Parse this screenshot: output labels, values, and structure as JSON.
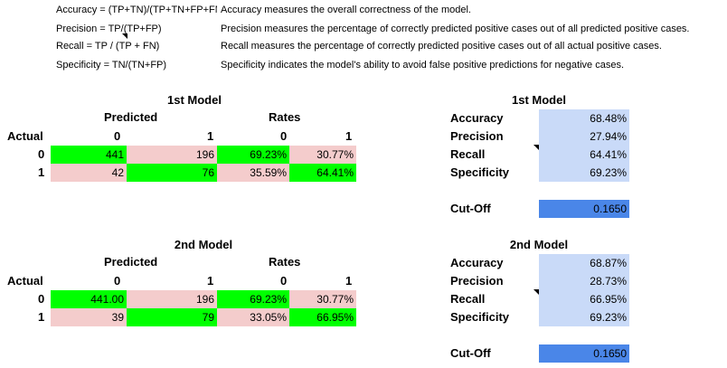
{
  "definitions": [
    {
      "formula": "Accuracy = (TP+TN)/(TP+TN+FP+FN)",
      "description": "Accuracy measures the overall correctness of the model."
    },
    {
      "formula": "Precision = TP/(TP+FP)",
      "description": "Precision measures the percentage of correctly predicted positive cases out of all predicted positive cases."
    },
    {
      "formula": "Recall = TP / (TP + FN)",
      "description": "Recall measures the percentage of correctly predicted positive cases out of all actual positive cases."
    },
    {
      "formula": "Specificity = TN/(TN+FP)",
      "description": "Specificity indicates the model's ability to avoid false positive predictions for negative cases."
    }
  ],
  "labels": {
    "predicted": "Predicted",
    "rates": "Rates",
    "actual": "Actual",
    "zero": "0",
    "one": "1",
    "accuracy": "Accuracy",
    "precision": "Precision",
    "recall": "Recall",
    "specificity": "Specificity",
    "cutoff": "Cut-Off"
  },
  "models": [
    {
      "title": "1st Model",
      "row0": {
        "pred0": "441",
        "pred1": "196",
        "rate0": "69.23%",
        "rate1": "30.77%"
      },
      "row1": {
        "pred0": "42",
        "pred1": "76",
        "rate0": "35.59%",
        "rate1": "64.41%"
      },
      "stats": {
        "accuracy": "68.48%",
        "precision": "27.94%",
        "recall": "64.41%",
        "specificity": "69.23%",
        "cutoff": "0.1650"
      }
    },
    {
      "title": "2nd Model",
      "row0": {
        "pred0": "441.00",
        "pred1": "196",
        "rate0": "69.23%",
        "rate1": "30.77%"
      },
      "row1": {
        "pred0": "39",
        "pred1": "79",
        "rate0": "33.05%",
        "rate1": "66.95%"
      },
      "stats": {
        "accuracy": "68.87%",
        "precision": "28.73%",
        "recall": "66.95%",
        "specificity": "69.23%",
        "cutoff": "0.1650"
      }
    }
  ],
  "colors": {
    "high": "#00ff00",
    "low": "#f4cccc",
    "stat_bg": "#c9daf8",
    "cutoff_bg": "#4a86e8"
  }
}
